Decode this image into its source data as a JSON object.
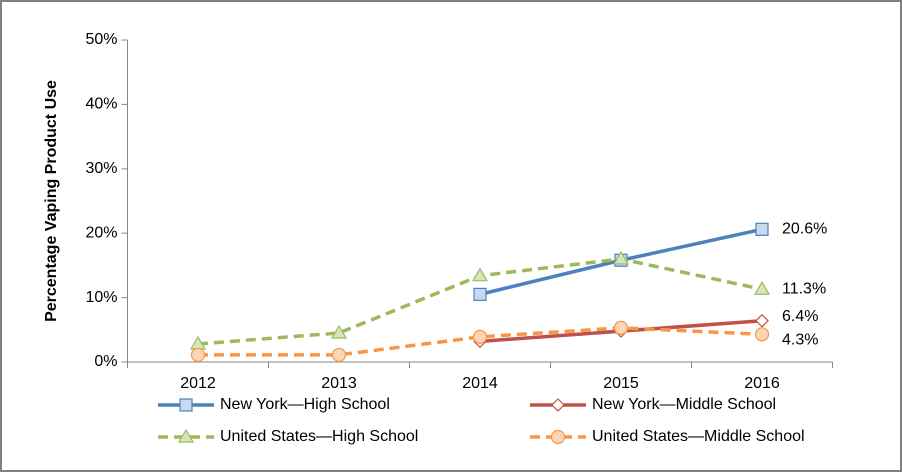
{
  "chart_data": {
    "type": "line",
    "y_label": "Percentage Vaping Product Use",
    "categories": [
      "2012",
      "2013",
      "2014",
      "2015",
      "2016"
    ],
    "ylim": [
      0,
      50
    ],
    "yticks": [
      {
        "value": 0,
        "label": "0%"
      },
      {
        "value": 10,
        "label": "10%"
      },
      {
        "value": 20,
        "label": "20%"
      },
      {
        "value": 30,
        "label": "30%"
      },
      {
        "value": 40,
        "label": "40%"
      },
      {
        "value": 50,
        "label": "50%"
      }
    ],
    "grid": false,
    "legend": "bottom",
    "series": [
      {
        "name": "New York—High School",
        "color": "#4f81bd",
        "marker": "square",
        "marker_fill": "#c6d9f1",
        "dashed": false,
        "values": [
          null,
          null,
          10.5,
          15.8,
          20.6
        ],
        "value_labels": [
          null,
          null,
          null,
          null,
          "20.6%"
        ]
      },
      {
        "name": "New York—Middle School",
        "color": "#c0504d",
        "marker": "diamond",
        "marker_fill": "#ffffff",
        "dashed": false,
        "values": [
          null,
          null,
          3.2,
          4.8,
          6.4
        ],
        "value_labels": [
          null,
          null,
          null,
          null,
          "6.4%"
        ]
      },
      {
        "name": "United States—High School",
        "color": "#9bbb59",
        "marker": "triangle",
        "marker_fill": "#d7e4bd",
        "dashed": true,
        "values": [
          2.8,
          4.5,
          13.4,
          16.0,
          11.3
        ],
        "value_labels": [
          null,
          null,
          null,
          null,
          "11.3%"
        ]
      },
      {
        "name": "United States—Middle School",
        "color": "#f79646",
        "marker": "circle",
        "marker_fill": "#fcd5b5",
        "dashed": true,
        "values": [
          1.1,
          1.1,
          3.9,
          5.3,
          4.3
        ],
        "value_labels": [
          null,
          null,
          null,
          null,
          "4.3%"
        ]
      }
    ]
  }
}
